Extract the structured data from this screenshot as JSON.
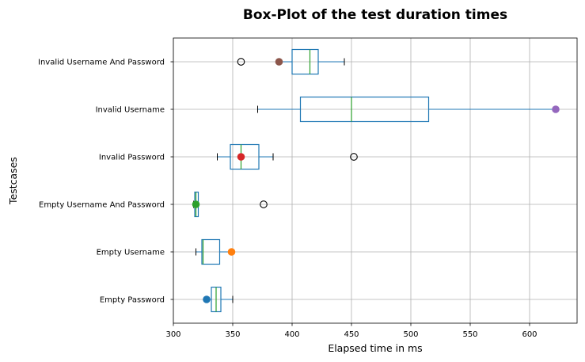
{
  "chart_data": {
    "type": "box",
    "title": "Box-Plot of the test duration times",
    "xlabel": "Elapsed time in ms",
    "ylabel": "Testcases",
    "xlim": [
      300,
      640
    ],
    "xticks": [
      300,
      350,
      400,
      450,
      500,
      550,
      600
    ],
    "grid": true,
    "orientation": "horizontal",
    "categories": [
      "Empty Password",
      "Empty Username",
      "Empty Username And Password",
      "Invalid Password",
      "Invalid Username",
      "Invalid Username And Password"
    ],
    "boxes": [
      {
        "name": "Empty Password",
        "whisker_low": 328,
        "q1": 332,
        "median": 336,
        "q3": 340,
        "whisker_high": 350,
        "outliers": [],
        "marker": 328,
        "marker_color": "#1f77b4"
      },
      {
        "name": "Empty Username",
        "whisker_low": 319,
        "q1": 324,
        "median": 325,
        "q3": 339,
        "whisker_high": 349,
        "outliers": [],
        "marker": 349,
        "marker_color": "#ff7f0e"
      },
      {
        "name": "Empty Username And Password",
        "whisker_low": 317,
        "q1": 318,
        "median": 319,
        "q3": 321,
        "whisker_high": 321,
        "outliers": [
          376
        ],
        "marker": 319,
        "marker_color": "#2ca02c"
      },
      {
        "name": "Invalid Password",
        "whisker_low": 337,
        "q1": 348,
        "median": 357,
        "q3": 372,
        "whisker_high": 384,
        "outliers": [
          452
        ],
        "marker": 357,
        "marker_color": "#d62728"
      },
      {
        "name": "Invalid Username",
        "whisker_low": 371,
        "q1": 407,
        "median": 450,
        "q3": 515,
        "whisker_high": 622,
        "outliers": [],
        "marker": 622,
        "marker_color": "#9467bd"
      },
      {
        "name": "Invalid Username And Password",
        "whisker_low": 389,
        "q1": 400,
        "median": 415,
        "q3": 422,
        "whisker_high": 444,
        "outliers": [
          357
        ],
        "marker": 389,
        "marker_color": "#8c564b"
      }
    ],
    "colors": {
      "box": "#1f77b4",
      "median": "#2ca02c",
      "grid": "#b0b0b0",
      "outlier_edge": "#000000"
    }
  }
}
